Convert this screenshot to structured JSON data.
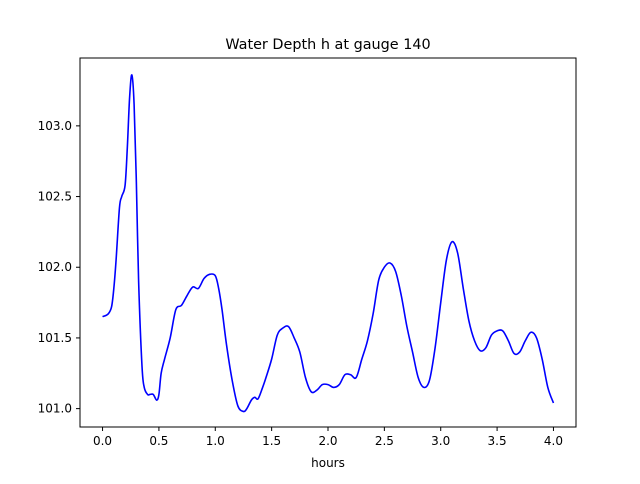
{
  "chart_data": {
    "type": "line",
    "title": "Water Depth h at gauge 140",
    "xlabel": "hours",
    "ylabel": "",
    "xlim": [
      -0.2,
      4.2
    ],
    "ylim": [
      100.87,
      103.48
    ],
    "xticks": [
      0.0,
      0.5,
      1.0,
      1.5,
      2.0,
      2.5,
      3.0,
      3.5,
      4.0
    ],
    "xtick_labels": [
      "0.0",
      "0.5",
      "1.0",
      "1.5",
      "2.0",
      "2.5",
      "3.0",
      "3.5",
      "4.0"
    ],
    "yticks": [
      101.0,
      101.5,
      102.0,
      102.5,
      103.0
    ],
    "ytick_labels": [
      "101.0",
      "101.5",
      "102.0",
      "102.5",
      "103.0"
    ],
    "grid": false,
    "legend": "none",
    "series": [
      {
        "color": "#0000ff",
        "x": [
          0.0,
          0.05,
          0.08,
          0.1,
          0.12,
          0.15,
          0.17,
          0.2,
          0.22,
          0.24,
          0.26,
          0.28,
          0.3,
          0.32,
          0.35,
          0.37,
          0.4,
          0.42,
          0.45,
          0.48,
          0.5,
          0.52,
          0.55,
          0.6,
          0.65,
          0.7,
          0.75,
          0.8,
          0.85,
          0.9,
          0.95,
          1.0,
          1.03,
          1.06,
          1.1,
          1.15,
          1.2,
          1.25,
          1.28,
          1.32,
          1.35,
          1.38,
          1.42,
          1.45,
          1.5,
          1.55,
          1.6,
          1.65,
          1.7,
          1.75,
          1.8,
          1.85,
          1.9,
          1.95,
          2.0,
          2.05,
          2.1,
          2.15,
          2.2,
          2.25,
          2.3,
          2.35,
          2.4,
          2.45,
          2.5,
          2.55,
          2.6,
          2.65,
          2.7,
          2.75,
          2.8,
          2.85,
          2.9,
          2.95,
          3.0,
          3.05,
          3.1,
          3.15,
          3.2,
          3.25,
          3.3,
          3.35,
          3.4,
          3.45,
          3.5,
          3.55,
          3.6,
          3.65,
          3.7,
          3.75,
          3.8,
          3.85,
          3.9,
          3.95,
          4.0
        ],
        "y": [
          101.65,
          101.67,
          101.72,
          101.85,
          102.05,
          102.42,
          102.5,
          102.58,
          102.85,
          103.2,
          103.36,
          103.15,
          102.6,
          101.9,
          101.3,
          101.15,
          101.1,
          101.1,
          101.1,
          101.06,
          101.1,
          101.25,
          101.35,
          101.5,
          101.7,
          101.73,
          101.8,
          101.86,
          101.85,
          101.92,
          101.95,
          101.94,
          101.85,
          101.7,
          101.45,
          101.2,
          101.02,
          100.98,
          101.0,
          101.06,
          101.08,
          101.07,
          101.15,
          101.22,
          101.35,
          101.52,
          101.57,
          101.58,
          101.5,
          101.4,
          101.22,
          101.12,
          101.13,
          101.17,
          101.17,
          101.15,
          101.17,
          101.24,
          101.24,
          101.22,
          101.35,
          101.48,
          101.67,
          101.91,
          102.0,
          102.03,
          101.97,
          101.8,
          101.58,
          101.4,
          101.22,
          101.15,
          101.2,
          101.43,
          101.75,
          102.05,
          102.18,
          102.1,
          101.85,
          101.62,
          101.48,
          101.41,
          101.43,
          101.52,
          101.55,
          101.55,
          101.48,
          101.39,
          101.4,
          101.48,
          101.54,
          101.5,
          101.35,
          101.15,
          101.04
        ]
      }
    ]
  }
}
